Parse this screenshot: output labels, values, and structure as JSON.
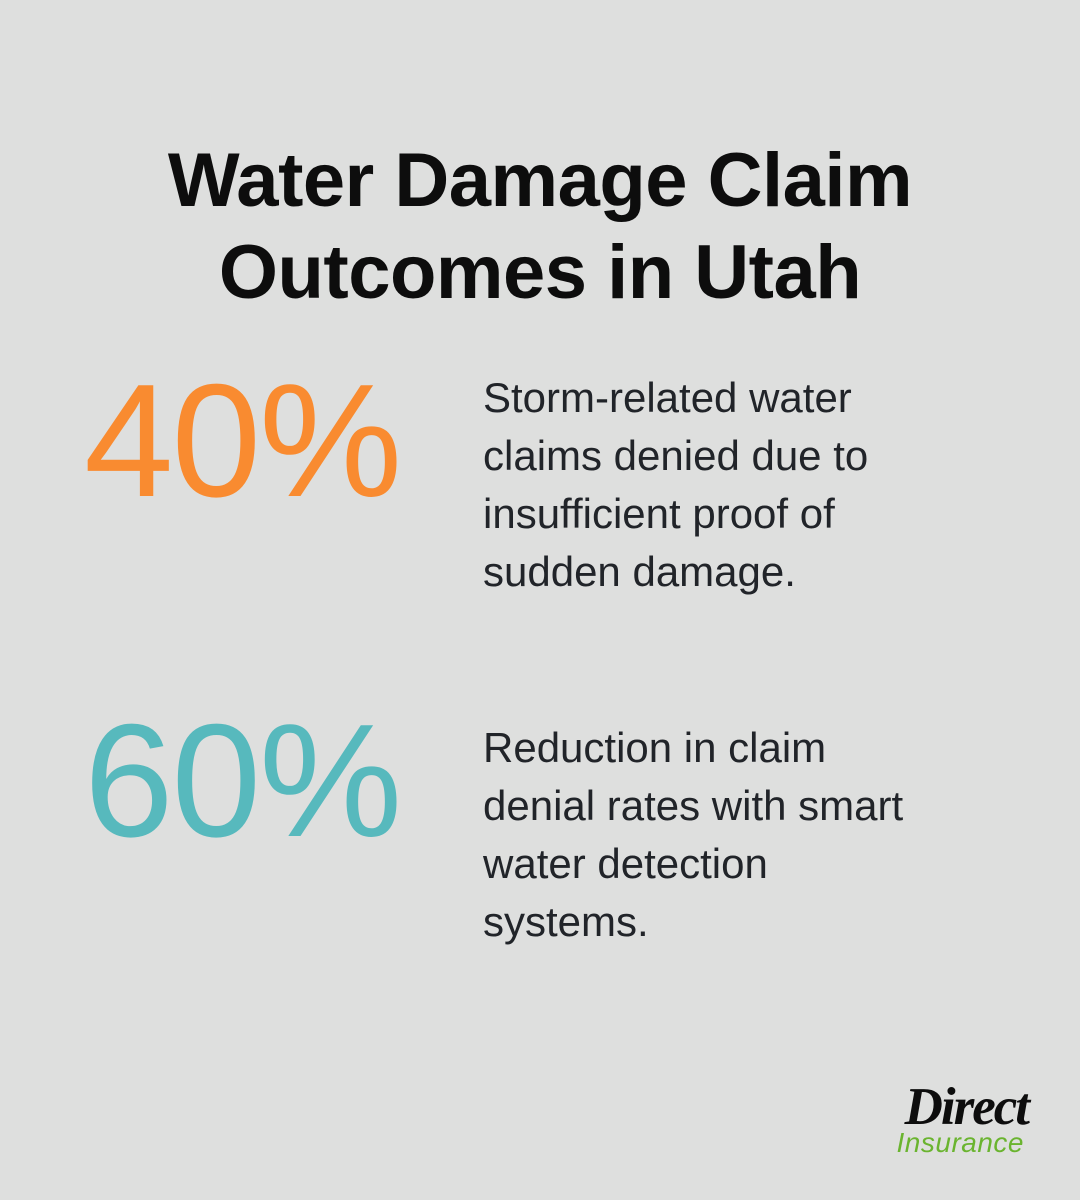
{
  "page": {
    "background_color": "#dedfde",
    "text_color": "#212429",
    "title_color": "#0d0d0d"
  },
  "title": {
    "text": "Water Damage Claim\nOutcomes in Utah"
  },
  "stats": [
    {
      "value": "40%",
      "color": "#f98b30",
      "description": "Storm-related water\nclaims denied due to\ninsufficient proof of\nsudden damage."
    },
    {
      "value": "60%",
      "color": "#57b9bd",
      "description": "Reduction in claim\ndenial rates with smart\nwater detection\nsystems."
    }
  ],
  "logo": {
    "name": "Direct",
    "subname": "Insurance",
    "name_color": "#0d0d0d",
    "subname_color": "#6ab42f"
  },
  "chart_data": {
    "type": "table",
    "title": "Water Damage Claim Outcomes in Utah",
    "categories": [
      "Storm-related water claims denied due to insufficient proof of sudden damage.",
      "Reduction in claim denial rates with smart water detection systems."
    ],
    "values": [
      40,
      60
    ],
    "unit": "%",
    "colors": [
      "#f98b30",
      "#57b9bd"
    ],
    "legend": "none",
    "layout": "stat-callout infographic, numbers left, descriptions right"
  }
}
